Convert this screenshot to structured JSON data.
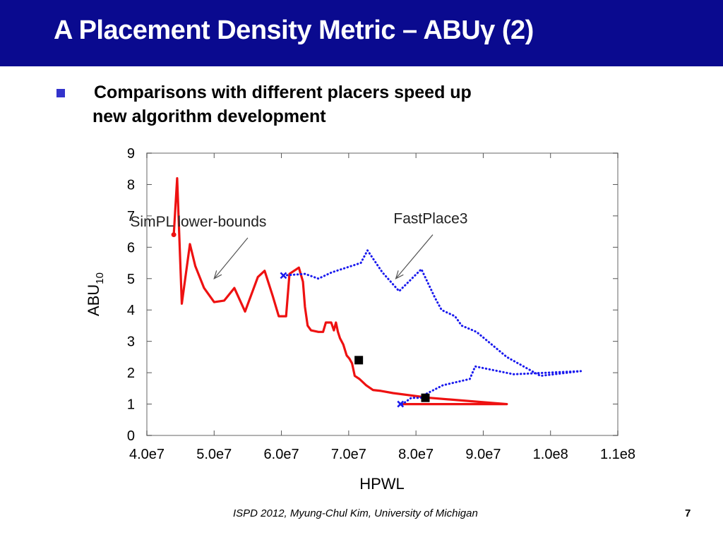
{
  "slide": {
    "title": "A Placement Density Metric – ABUγ (2)",
    "bullet_line1": "Comparisons with different placers speed up",
    "bullet_line2": "new algorithm development",
    "footer": "ISPD 2012, Myung-Chul Kim, University of Michigan",
    "page_number": "7"
  },
  "colors": {
    "header_bg": "#0a0a8f",
    "bullet": "#3333cc",
    "simpl": "#ee1111",
    "fastplace": "#1a1aee",
    "marker": "#000000"
  },
  "chart_data": {
    "type": "line",
    "xlabel": "HPWL",
    "ylabel": "ABU",
    "ylabel_sub": "10",
    "xlim": [
      40000000,
      110000000
    ],
    "ylim": [
      0,
      9
    ],
    "xticks": [
      40000000,
      50000000,
      60000000,
      70000000,
      80000000,
      90000000,
      100000000,
      110000000
    ],
    "xtick_labels": [
      "4.0e7",
      "5.0e7",
      "6.0e7",
      "7.0e7",
      "8.0e7",
      "9.0e7",
      "1.0e8",
      "1.1e8"
    ],
    "yticks": [
      0,
      1,
      2,
      3,
      4,
      5,
      6,
      7,
      8,
      9
    ],
    "ytick_labels": [
      "0",
      "1",
      "2",
      "3",
      "4",
      "5",
      "6",
      "7",
      "8",
      "9"
    ],
    "series": [
      {
        "name": "SimPL lower-bounds",
        "style": "solid",
        "color": "#ee1111",
        "x": [
          44000000,
          44500000,
          45200000,
          46400000,
          47200000,
          48500000,
          50000000,
          51500000,
          53000000,
          54600000,
          56500000,
          57500000,
          58700000,
          59600000,
          60700000,
          61200000,
          62600000,
          63200000,
          63500000,
          63900000,
          64400000,
          65500000,
          66200000,
          66600000,
          67400000,
          67800000,
          68100000,
          68400000,
          68700000,
          69200000,
          69700000,
          70100000,
          70500000,
          70900000,
          71600000,
          72600000,
          73600000,
          74800000,
          76600000,
          82000000,
          93500000,
          81000000,
          78000000
        ],
        "y": [
          6.4,
          8.2,
          4.2,
          6.1,
          5.4,
          4.7,
          4.25,
          4.3,
          4.7,
          3.95,
          5.05,
          5.25,
          4.45,
          3.8,
          3.8,
          5.15,
          5.35,
          4.9,
          4.1,
          3.5,
          3.35,
          3.3,
          3.3,
          3.6,
          3.6,
          3.35,
          3.6,
          3.3,
          3.1,
          2.9,
          2.55,
          2.45,
          2.3,
          1.9,
          1.8,
          1.6,
          1.45,
          1.42,
          1.35,
          1.2,
          1.0,
          1.0,
          1.0
        ]
      },
      {
        "name": "FastPlace3",
        "style": "dotted",
        "color": "#1a1aee",
        "x": [
          60300000,
          63500000,
          65500000,
          67500000,
          71800000,
          72800000,
          75000000,
          77500000,
          80800000,
          82800000,
          83800000,
          85800000,
          86800000,
          89000000,
          93500000,
          98500000,
          104500000,
          99500000,
          94500000,
          88800000,
          88000000,
          84000000,
          81300000,
          80700000,
          79300000,
          78000000,
          77700000
        ],
        "y": [
          5.1,
          5.15,
          5.0,
          5.2,
          5.5,
          5.9,
          5.2,
          4.6,
          5.3,
          4.4,
          4.0,
          3.8,
          3.5,
          3.3,
          2.5,
          1.9,
          2.05,
          2.0,
          1.95,
          2.2,
          1.8,
          1.6,
          1.3,
          1.2,
          1.2,
          1.0,
          1.0
        ]
      }
    ],
    "markers": [
      {
        "x": 71500000,
        "y": 2.4
      },
      {
        "x": 81400000,
        "y": 1.2
      }
    ],
    "annotations": [
      {
        "text": "SimPL lower-bounds",
        "arrow_to_x": 50000000,
        "arrow_to_y": 5.0,
        "from_x": 55000000,
        "from_y": 6.3
      },
      {
        "text": "FastPlace3",
        "arrow_to_x": 77000000,
        "arrow_to_y": 5.0,
        "from_x": 82500000,
        "from_y": 6.4
      }
    ],
    "grid": false
  }
}
